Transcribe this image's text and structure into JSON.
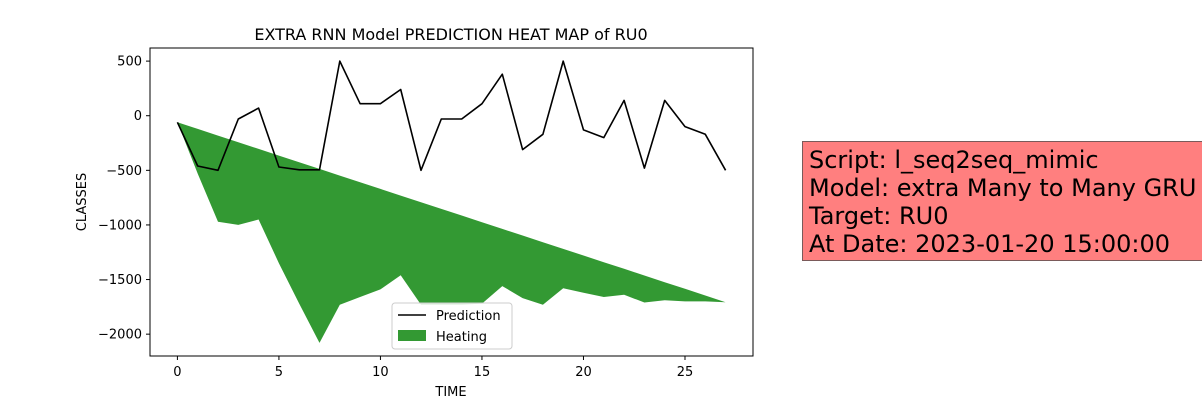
{
  "chart_data": {
    "type": "line",
    "title": "EXTRA RNN Model PREDICTION HEAT MAP of RU0",
    "xlabel": "TIME",
    "ylabel": "CLASSES",
    "xlim": [
      -1.35,
      28.35
    ],
    "ylim": [
      -2200,
      620
    ],
    "xticks": [
      0,
      5,
      10,
      15,
      20,
      25
    ],
    "yticks": [
      500,
      0,
      -500,
      -1000,
      -1500,
      -2000
    ],
    "x": [
      0,
      1,
      2,
      3,
      4,
      5,
      6,
      7,
      8,
      9,
      10,
      11,
      12,
      13,
      14,
      15,
      16,
      17,
      18,
      19,
      20,
      21,
      22,
      23,
      24,
      25,
      26,
      27
    ],
    "series": [
      {
        "name": "Prediction",
        "style": "line",
        "color": "#000000",
        "values": [
          -60,
          -460,
          -500,
          -30,
          70,
          -470,
          -495,
          -495,
          500,
          110,
          110,
          240,
          -500,
          -30,
          -30,
          110,
          380,
          -310,
          -170,
          500,
          -130,
          -200,
          140,
          -480,
          140,
          -100,
          -170,
          -500
        ]
      },
      {
        "name": "Heating",
        "style": "fill_between",
        "color": "#339933",
        "upper": [
          -60,
          -121,
          -182,
          -243,
          -304,
          -365,
          -426,
          -487,
          -548,
          -609,
          -670,
          -731,
          -792,
          -853,
          -914,
          -975,
          -1036,
          -1097,
          -1158,
          -1219,
          -1280,
          -1341,
          -1402,
          -1463,
          -1524,
          -1585,
          -1646,
          -1707
        ],
        "lower": [
          -60,
          -530,
          -970,
          -1000,
          -950,
          -1350,
          -1720,
          -2080,
          -1730,
          -1660,
          -1590,
          -1460,
          -1730,
          -1730,
          -1730,
          -1720,
          -1560,
          -1670,
          -1730,
          -1580,
          -1620,
          -1660,
          -1640,
          -1710,
          -1690,
          -1700,
          -1700,
          -1707
        ]
      }
    ],
    "legend": {
      "position": "lower-center",
      "entries": [
        "Prediction",
        "Heating"
      ]
    },
    "grid": false
  },
  "info_box": {
    "background": "#ff7f7f",
    "lines": [
      "Script: l_seq2seq_mimic",
      "Model: extra Many to Many GRU",
      "Target: RU0",
      "At Date: 2023-01-20 15:00:00"
    ]
  }
}
